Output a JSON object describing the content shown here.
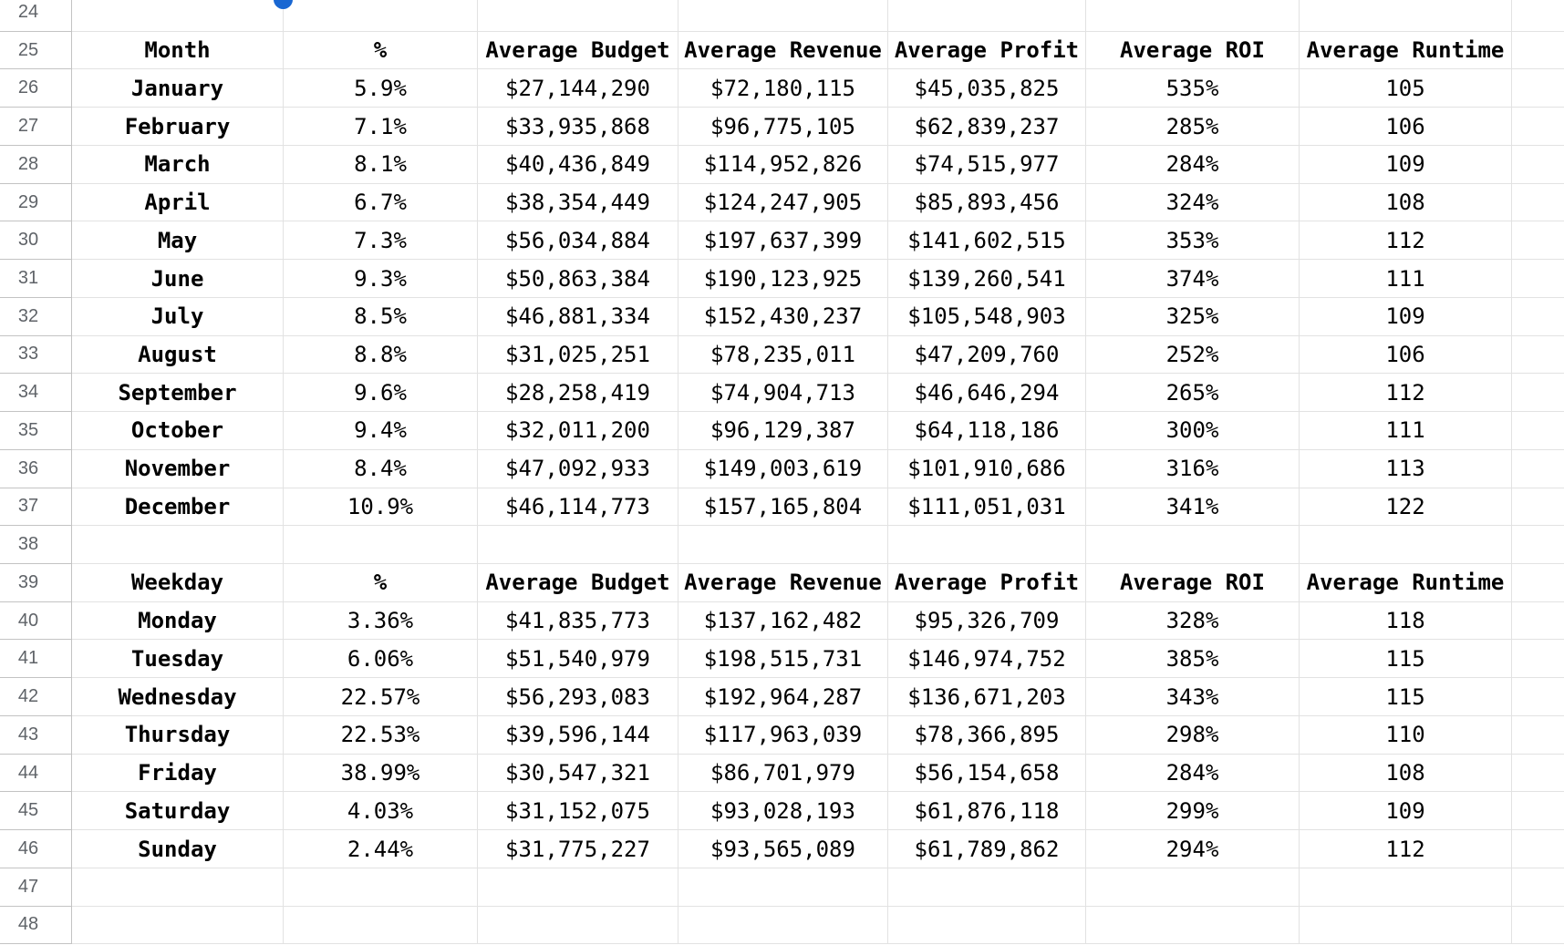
{
  "colors": {
    "grid_line": "#e2e2e2",
    "header_line": "#c3c3c3",
    "row_number_text": "#5f6368",
    "cell_text": "#000000",
    "background": "#ffffff",
    "handle": "#1967d2"
  },
  "selection": {
    "handle_shape": "circle"
  },
  "grid": {
    "row_numbers": [
      "24",
      "25",
      "26",
      "27",
      "28",
      "29",
      "30",
      "31",
      "32",
      "33",
      "34",
      "35",
      "36",
      "37",
      "38",
      "39",
      "40",
      "41",
      "42",
      "43",
      "44",
      "45",
      "46",
      "47",
      "48"
    ],
    "first_row_number": 24,
    "empty_rows": [
      24,
      38,
      47,
      48
    ],
    "tables": [
      {
        "header_row": 25,
        "data_start_row": 26,
        "headers": [
          "Month",
          "%",
          "Average Budget",
          "Average Revenue",
          "Average Profit",
          "Average ROI",
          "Average Runtime"
        ],
        "rows": [
          [
            "January",
            "5.9%",
            "$27,144,290",
            "$72,180,115",
            "$45,035,825",
            "535%",
            "105"
          ],
          [
            "February",
            "7.1%",
            "$33,935,868",
            "$96,775,105",
            "$62,839,237",
            "285%",
            "106"
          ],
          [
            "March",
            "8.1%",
            "$40,436,849",
            "$114,952,826",
            "$74,515,977",
            "284%",
            "109"
          ],
          [
            "April",
            "6.7%",
            "$38,354,449",
            "$124,247,905",
            "$85,893,456",
            "324%",
            "108"
          ],
          [
            "May",
            "7.3%",
            "$56,034,884",
            "$197,637,399",
            "$141,602,515",
            "353%",
            "112"
          ],
          [
            "June",
            "9.3%",
            "$50,863,384",
            "$190,123,925",
            "$139,260,541",
            "374%",
            "111"
          ],
          [
            "July",
            "8.5%",
            "$46,881,334",
            "$152,430,237",
            "$105,548,903",
            "325%",
            "109"
          ],
          [
            "August",
            "8.8%",
            "$31,025,251",
            "$78,235,011",
            "$47,209,760",
            "252%",
            "106"
          ],
          [
            "September",
            "9.6%",
            "$28,258,419",
            "$74,904,713",
            "$46,646,294",
            "265%",
            "112"
          ],
          [
            "October",
            "9.4%",
            "$32,011,200",
            "$96,129,387",
            "$64,118,186",
            "300%",
            "111"
          ],
          [
            "November",
            "8.4%",
            "$47,092,933",
            "$149,003,619",
            "$101,910,686",
            "316%",
            "113"
          ],
          [
            "December",
            "10.9%",
            "$46,114,773",
            "$157,165,804",
            "$111,051,031",
            "341%",
            "122"
          ]
        ]
      },
      {
        "header_row": 39,
        "data_start_row": 40,
        "headers": [
          "Weekday",
          "%",
          "Average Budget",
          "Average Revenue",
          "Average Profit",
          "Average ROI",
          "Average Runtime"
        ],
        "rows": [
          [
            "Monday",
            "3.36%",
            "$41,835,773",
            "$137,162,482",
            "$95,326,709",
            "328%",
            "118"
          ],
          [
            "Tuesday",
            "6.06%",
            "$51,540,979",
            "$198,515,731",
            "$146,974,752",
            "385%",
            "115"
          ],
          [
            "Wednesday",
            "22.57%",
            "$56,293,083",
            "$192,964,287",
            "$136,671,203",
            "343%",
            "115"
          ],
          [
            "Thursday",
            "22.53%",
            "$39,596,144",
            "$117,963,039",
            "$78,366,895",
            "298%",
            "110"
          ],
          [
            "Friday",
            "38.99%",
            "$30,547,321",
            "$86,701,979",
            "$56,154,658",
            "284%",
            "108"
          ],
          [
            "Saturday",
            "4.03%",
            "$31,152,075",
            "$93,028,193",
            "$61,876,118",
            "299%",
            "109"
          ],
          [
            "Sunday",
            "2.44%",
            "$31,775,227",
            "$93,565,089",
            "$61,789,862",
            "294%",
            "112"
          ]
        ]
      }
    ]
  }
}
